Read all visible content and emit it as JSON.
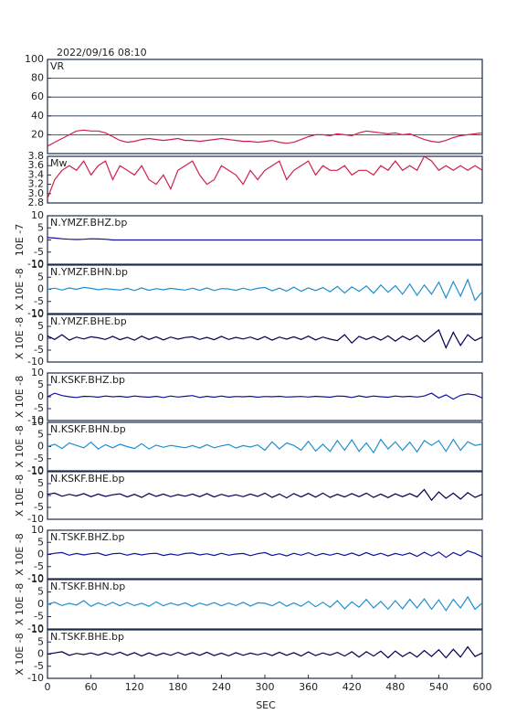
{
  "chart_data": {
    "type": "line",
    "title": "2022/09/16 08:10",
    "xlabel": "SEC",
    "x": [
      0,
      10,
      20,
      30,
      40,
      50,
      60,
      70,
      80,
      90,
      100,
      110,
      120,
      130,
      140,
      150,
      160,
      170,
      180,
      190,
      200,
      210,
      220,
      230,
      240,
      250,
      260,
      270,
      280,
      290,
      300,
      310,
      320,
      330,
      340,
      350,
      360,
      370,
      380,
      390,
      400,
      410,
      420,
      430,
      440,
      450,
      460,
      470,
      480,
      490,
      500,
      510,
      520,
      530,
      540,
      550,
      560,
      570,
      580,
      590,
      600
    ],
    "xlim": [
      0,
      600
    ],
    "xticks": [
      0,
      60,
      120,
      180,
      240,
      300,
      360,
      420,
      480,
      540,
      600
    ],
    "panels": [
      {
        "label": "VR",
        "color": "#d0204a",
        "ylim": [
          0,
          100
        ],
        "yticks": [
          20,
          40,
          60,
          80,
          100
        ],
        "grid": true,
        "values": [
          8,
          12,
          16,
          20,
          24,
          25,
          24,
          24,
          22,
          18,
          14,
          12,
          13,
          15,
          16,
          15,
          14,
          15,
          16,
          14,
          14,
          13,
          14,
          15,
          16,
          15,
          14,
          13,
          13,
          12,
          13,
          14,
          12,
          11,
          12,
          15,
          18,
          20,
          20,
          19,
          21,
          20,
          19,
          22,
          24,
          23,
          22,
          21,
          22,
          20,
          21,
          18,
          15,
          13,
          12,
          14,
          17,
          19,
          20,
          21,
          22
        ]
      },
      {
        "label": "Mw",
        "color": "#d0204a",
        "ylim": [
          2.8,
          3.8
        ],
        "yticks": [
          2.8,
          {
            "value": 3,
            "label": "3.0"
          },
          3.2,
          3.4,
          3.6,
          3.8
        ],
        "grid": false,
        "values": [
          2.9,
          3.3,
          3.5,
          3.6,
          3.5,
          3.7,
          3.4,
          3.6,
          3.7,
          3.3,
          3.6,
          3.5,
          3.4,
          3.6,
          3.3,
          3.2,
          3.4,
          3.1,
          3.5,
          3.6,
          3.7,
          3.4,
          3.2,
          3.3,
          3.6,
          3.5,
          3.4,
          3.2,
          3.5,
          3.3,
          3.5,
          3.6,
          3.7,
          3.3,
          3.5,
          3.6,
          3.7,
          3.4,
          3.6,
          3.5,
          3.5,
          3.6,
          3.4,
          3.5,
          3.5,
          3.4,
          3.6,
          3.5,
          3.7,
          3.5,
          3.6,
          3.5,
          3.8,
          3.7,
          3.5,
          3.6,
          3.5,
          3.6,
          3.5,
          3.6,
          3.5
        ]
      },
      {
        "label": "N.YMZF.BHZ.bp",
        "ylabel": "10E -7",
        "color": "#1010a0",
        "ylim": [
          -10,
          10
        ],
        "yticks": [
          -10,
          -5,
          0,
          5,
          10
        ],
        "grid": false,
        "values": [
          1,
          0.8,
          0.5,
          0.3,
          0.2,
          0.3,
          0.5,
          0.4,
          0.3,
          0,
          0,
          0,
          0,
          0,
          0,
          0,
          0,
          0,
          0,
          0,
          0,
          0,
          0,
          0,
          0,
          0,
          0,
          0,
          0,
          0,
          0,
          0,
          0,
          0,
          0,
          0,
          0,
          0,
          0,
          0,
          0,
          0,
          0,
          0,
          0,
          0,
          0,
          0,
          0,
          0,
          0,
          0,
          0,
          0,
          0,
          0,
          0,
          0,
          0,
          0,
          0
        ]
      },
      {
        "label": "N.YMZF.BHN.bp",
        "ylabel": "X 10E -8",
        "color": "#1f8fd0",
        "ylim": [
          -10,
          10
        ],
        "yticks": [
          -10,
          -5,
          0,
          5,
          10
        ],
        "grid": false,
        "values": [
          0,
          0.5,
          -0.3,
          0.6,
          0,
          0.8,
          0.4,
          -0.2,
          0.3,
          0,
          -0.3,
          0.4,
          -0.5,
          0.6,
          -0.4,
          0.3,
          -0.2,
          0.4,
          0,
          -0.3,
          0.5,
          -0.4,
          0.6,
          -0.5,
          0.3,
          0.2,
          -0.4,
          0.5,
          -0.3,
          0.4,
          0.8,
          -0.6,
          0.5,
          -0.7,
          0.9,
          -0.8,
          0.6,
          -0.5,
          0.7,
          -1,
          1.2,
          -1.5,
          1,
          -0.8,
          1.4,
          -1.6,
          1.8,
          -1.2,
          1.5,
          -2,
          2.2,
          -2.5,
          1.8,
          -2,
          3,
          -3.5,
          3.2,
          -2.8,
          4,
          -4.5,
          -1
        ]
      },
      {
        "label": "N.YMZF.BHE.bp",
        "ylabel": "X 10E -8",
        "color": "#000050",
        "ylim": [
          -10,
          10
        ],
        "yticks": [
          -10,
          -5,
          0,
          5,
          10
        ],
        "grid": false,
        "values": [
          1,
          -0.5,
          1.5,
          -0.8,
          0.5,
          -0.3,
          0.6,
          0.2,
          -0.5,
          0.8,
          -0.6,
          0.4,
          -0.8,
          0.9,
          -0.5,
          0.6,
          -0.7,
          0.5,
          -0.4,
          0.3,
          0.6,
          -0.5,
          0.4,
          -0.6,
          0.8,
          -0.5,
          0.4,
          -0.3,
          0.5,
          -0.6,
          0.7,
          -0.8,
          0.5,
          -0.4,
          0.6,
          -0.5,
          0.9,
          -0.7,
          0.5,
          -0.4,
          -1,
          1.5,
          -2,
          0.8,
          -0.5,
          0.7,
          -0.8,
          1,
          -1.2,
          0.9,
          -0.7,
          1.2,
          -1.5,
          1,
          3.5,
          -4,
          2.5,
          -3,
          1.5,
          -1,
          0.5
        ]
      },
      {
        "label": "N.KSKF.BHZ.bp",
        "ylabel": "X 10E -8",
        "color": "#1010a0",
        "ylim": [
          -10,
          10
        ],
        "yticks": [
          -10,
          -5,
          0,
          5,
          10
        ],
        "grid": false,
        "values": [
          0,
          1.5,
          0.5,
          0,
          -0.3,
          0.2,
          0.1,
          -0.2,
          0.3,
          0,
          0.2,
          -0.2,
          0.3,
          0,
          -0.2,
          0.2,
          -0.3,
          0.3,
          -0.1,
          0.2,
          0.5,
          -0.3,
          0.2,
          -0.2,
          0.3,
          -0.2,
          0.1,
          0,
          0.2,
          -0.2,
          0.1,
          0,
          0.2,
          -0.1,
          0,
          0.1,
          -0.1,
          0.2,
          0,
          -0.2,
          0.3,
          0.2,
          -0.3,
          0.4,
          -0.2,
          0.3,
          0,
          -0.2,
          0.3,
          0,
          0.2,
          -0.1,
          0.3,
          1.5,
          -0.5,
          0.8,
          -1,
          0.6,
          1.2,
          0.8,
          -0.5
        ]
      },
      {
        "label": "N.KSKF.BHN.bp",
        "ylabel": "X 10E -8",
        "color": "#1f8fd0",
        "ylim": [
          -10,
          10
        ],
        "yticks": [
          -10,
          -5,
          0,
          5,
          10
        ],
        "grid": false,
        "values": [
          0,
          1,
          -0.8,
          1.5,
          0.5,
          -0.5,
          1.8,
          -1,
          0.8,
          -0.5,
          1,
          0,
          -0.8,
          1.2,
          -1,
          0.6,
          -0.3,
          0.5,
          0,
          -0.5,
          0.4,
          -0.6,
          0.8,
          -0.5,
          0.3,
          0.9,
          -0.6,
          0.4,
          -0.2,
          0.7,
          -1.5,
          2,
          -1,
          1.5,
          0.5,
          -1.5,
          2.2,
          -1.8,
          1,
          -2,
          2.5,
          -1.5,
          2.8,
          -2,
          1.5,
          -2.5,
          3,
          -1,
          2,
          -1.5,
          1.8,
          -2.2,
          2.5,
          0.5,
          2.5,
          -2,
          3,
          -1.5,
          2,
          0.5,
          1
        ]
      },
      {
        "label": "N.KSKF.BHE.bp",
        "ylabel": "X 10E -8",
        "color": "#000050",
        "ylim": [
          -10,
          10
        ],
        "yticks": [
          -10,
          -5,
          0,
          5,
          10
        ],
        "grid": false,
        "values": [
          0.5,
          1,
          -0.3,
          0.5,
          -0.2,
          0.8,
          -0.5,
          0.6,
          -0.4,
          0.3,
          0.7,
          -0.6,
          0.5,
          -0.8,
          0.9,
          -0.4,
          0.6,
          -0.5,
          0.4,
          -0.3,
          0.6,
          -0.5,
          0.8,
          -0.6,
          0.5,
          -0.4,
          0.3,
          -0.5,
          0.6,
          -0.4,
          1,
          -0.8,
          0.6,
          -1,
          0.8,
          -0.6,
          0.9,
          -0.7,
          1,
          -0.8,
          0.5,
          -0.6,
          0.8,
          -0.5,
          1,
          -0.8,
          0.6,
          -0.9,
          0.7,
          -0.5,
          0.8,
          -0.6,
          2.5,
          -2,
          1.5,
          -1.2,
          1,
          -1.5,
          1.2,
          -0.8,
          0.5
        ]
      },
      {
        "label": "N.TSKF.BHZ.bp",
        "ylabel": "X 10E -8",
        "color": "#1010a0",
        "ylim": [
          -10,
          10
        ],
        "yticks": [
          -10,
          -5,
          0,
          5,
          10
        ],
        "grid": false,
        "values": [
          0,
          0.5,
          0.8,
          -0.3,
          0.4,
          -0.2,
          0.3,
          0.6,
          -0.4,
          0.3,
          0.5,
          -0.3,
          0.4,
          -0.2,
          0.3,
          0.5,
          -0.4,
          0.2,
          -0.3,
          0.4,
          0.6,
          -0.2,
          0.3,
          -0.4,
          0.5,
          -0.3,
          0.2,
          0.4,
          -0.5,
          0.3,
          0.8,
          -0.4,
          0.3,
          -0.6,
          0.5,
          -0.3,
          0.7,
          -0.5,
          0.4,
          -0.3,
          0.5,
          -0.4,
          0.6,
          -0.5,
          0.8,
          -0.4,
          0.5,
          -0.6,
          0.4,
          -0.3,
          0.6,
          -0.8,
          0.9,
          -0.6,
          1,
          -1.2,
          0.8,
          -0.5,
          1.5,
          0.5,
          -1
        ]
      },
      {
        "label": "N.TSKF.BHN.bp",
        "ylabel": "X 10E -8",
        "color": "#1f8fd0",
        "ylim": [
          -10,
          10
        ],
        "yticks": [
          -10,
          -5,
          0,
          5,
          10
        ],
        "grid": false,
        "values": [
          0,
          0.8,
          -0.5,
          0.4,
          -0.3,
          1.5,
          -0.8,
          0.6,
          -0.5,
          0.8,
          -0.6,
          0.7,
          -0.5,
          0.4,
          -0.8,
          1,
          -0.6,
          0.5,
          -0.4,
          0.6,
          -0.8,
          0.5,
          -0.4,
          0.7,
          -0.6,
          0.5,
          -0.5,
          0.8,
          -0.7,
          0.6,
          0.4,
          -0.6,
          1,
          -0.8,
          0.6,
          -0.8,
          1.2,
          -1,
          0.8,
          -1.2,
          1.5,
          -1.8,
          1,
          -1.2,
          2,
          -1.5,
          1.2,
          -2,
          1.5,
          -1.8,
          2,
          -1.5,
          2.2,
          -2,
          1.8,
          -2.5,
          2,
          -1.5,
          3,
          -2,
          0.5
        ]
      },
      {
        "label": "N.TSKF.BHE.bp",
        "ylabel": "X 10E -8",
        "color": "#000050",
        "ylim": [
          -10,
          10
        ],
        "yticks": [
          -10,
          -5,
          0,
          5,
          10
        ],
        "grid": false,
        "values": [
          0,
          0.5,
          1,
          -0.5,
          0.3,
          -0.2,
          0.5,
          -0.4,
          0.6,
          -0.3,
          0.8,
          -0.5,
          0.6,
          -0.8,
          0.5,
          -0.6,
          0.4,
          -0.5,
          0.7,
          -0.4,
          0.6,
          -0.5,
          0.8,
          -0.6,
          0.4,
          -0.7,
          0.6,
          -0.5,
          0.4,
          -0.3,
          0.5,
          -0.6,
          0.8,
          -0.5,
          0.6,
          -0.8,
          0.9,
          -0.6,
          0.5,
          -0.4,
          0.7,
          -0.8,
          1,
          -1.2,
          1,
          -0.8,
          1.2,
          -1.5,
          1.3,
          -1,
          0.8,
          -1.2,
          1.5,
          -1,
          1.8,
          -1.5,
          2,
          -1.2,
          3,
          -1,
          0.5
        ]
      }
    ]
  }
}
